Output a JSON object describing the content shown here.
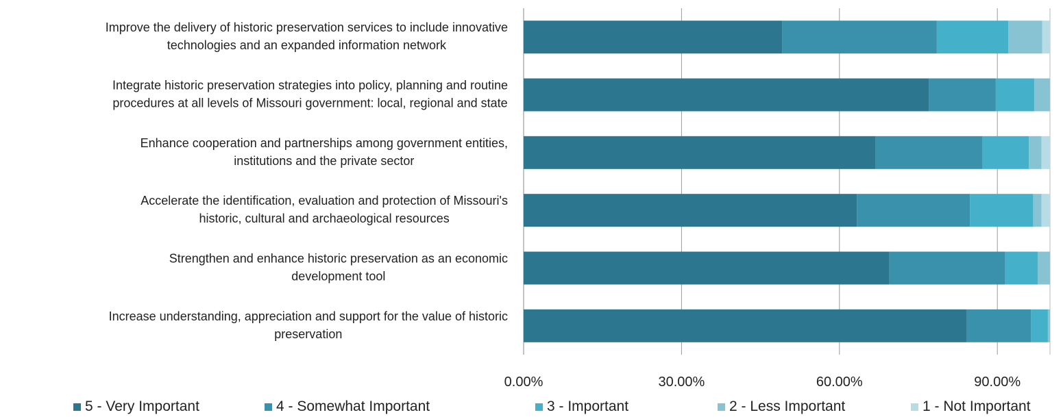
{
  "chart_data": {
    "type": "bar",
    "orientation": "horizontal",
    "stacked": true,
    "title": "",
    "xlabel": "",
    "ylabel": "",
    "xlim": [
      0,
      100
    ],
    "x_ticks": [
      0,
      30,
      60,
      90
    ],
    "tick_labels": [
      "0.00%",
      "30.00%",
      "60.00%",
      "90.00%"
    ],
    "grid": "vertical",
    "legend_position": "bottom",
    "categories": [
      [
        "Improve the delivery of historic preservation services to include innovative",
        "technologies and an expanded information network"
      ],
      [
        "Integrate historic preservation strategies into policy, planning and routine",
        "procedures at all levels of Missouri government:  local, regional and state"
      ],
      [
        "Enhance cooperation and partnerships among government entities,",
        "institutions and the private sector"
      ],
      [
        "Accelerate the identification, evaluation and protection of Missouri's",
        "historic, cultural and archaeological resources"
      ],
      [
        "Strengthen and enhance historic preservation as an economic",
        "development tool"
      ],
      [
        "Increase understanding, appreciation and support for the value of historic",
        "preservation"
      ]
    ],
    "series": [
      {
        "name": "5 - Very Important",
        "color": "#2d7690",
        "values": [
          49.1,
          77.0,
          66.8,
          63.3,
          69.4,
          84.2
        ]
      },
      {
        "name": "4 - Somewhat Important",
        "color": "#3991ab",
        "values": [
          29.4,
          12.7,
          20.4,
          21.5,
          22.1,
          12.2
        ]
      },
      {
        "name": "3 - Important",
        "color": "#45b0c9",
        "values": [
          13.6,
          7.3,
          8.8,
          12.0,
          6.2,
          3.2
        ]
      },
      {
        "name": "2 - Less Important",
        "color": "#88c3d3",
        "values": [
          6.4,
          3.0,
          2.4,
          1.6,
          2.3,
          0.4
        ]
      },
      {
        "name": "1 - Not Important",
        "color": "#b8dce6",
        "values": [
          1.5,
          0.0,
          1.6,
          1.6,
          0.0,
          0.0
        ]
      }
    ]
  }
}
